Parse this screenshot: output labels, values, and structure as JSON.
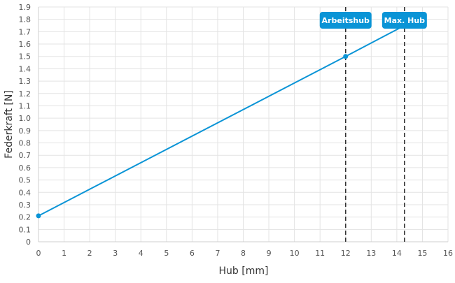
{
  "chart_data": {
    "type": "line",
    "xlabel": "Hub [mm]",
    "ylabel": "Federkraft [N]",
    "xlim": [
      0,
      16
    ],
    "ylim": [
      0,
      1.9
    ],
    "x_ticks": [
      "0",
      "1",
      "2",
      "3",
      "4",
      "5",
      "6",
      "7",
      "8",
      "9",
      "10",
      "11",
      "12",
      "13",
      "14",
      "15",
      "16"
    ],
    "y_ticks": [
      "0",
      "0.1",
      "0.2",
      "0.3",
      "0.4",
      "0.5",
      "0.6",
      "0.7",
      "0.8",
      "0.9",
      "1.0",
      "1.1",
      "1.2",
      "1.3",
      "1.4",
      "1.5",
      "1.6",
      "1.7",
      "1.8",
      "1.9"
    ],
    "grid": true,
    "legend": "none",
    "series": [
      {
        "color": "#0a94d6",
        "x": [
          0,
          12,
          14.3
        ],
        "y": [
          0.21,
          1.5,
          1.75
        ],
        "markers_at": [
          0,
          1
        ]
      }
    ],
    "markers": [
      {
        "label": "Arbeitshub",
        "x": 12
      },
      {
        "label": "Max. Hub",
        "x": 14.3
      }
    ]
  }
}
